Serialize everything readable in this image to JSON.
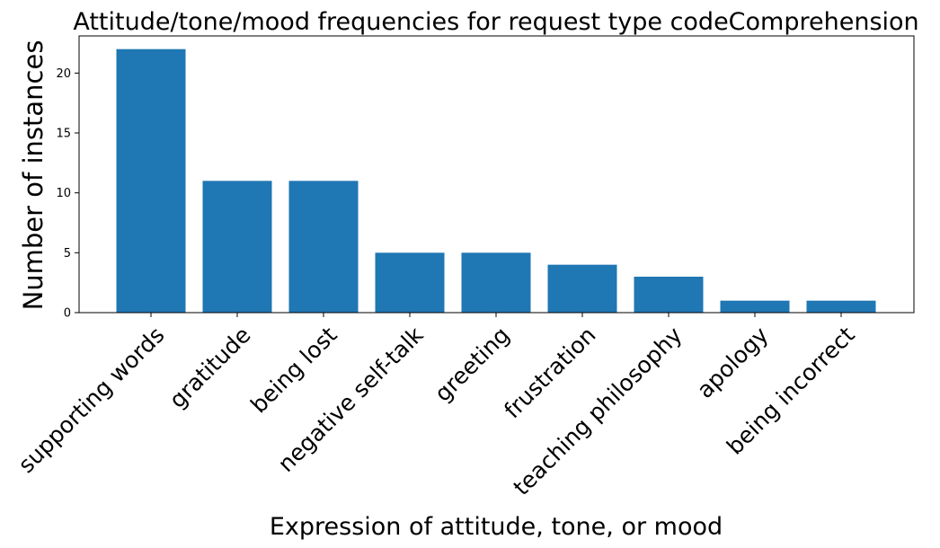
{
  "chart_data": {
    "type": "bar",
    "title": "Attitude/tone/mood frequencies for request type codeComprehension",
    "xlabel": "Expression of attitude, tone, or mood",
    "ylabel": "Number of instances",
    "categories": [
      "supporting words",
      "gratitude",
      "being lost",
      "negative self-talk",
      "greeting",
      "frustration",
      "teaching philosophy",
      "apology",
      "being incorrect"
    ],
    "values": [
      22,
      11,
      11,
      5,
      5,
      4,
      3,
      1,
      1
    ],
    "ylim": [
      0,
      23.1
    ],
    "yticks": [
      "0",
      "5",
      "10",
      "15",
      "20"
    ],
    "bar_color": "#1f77b4",
    "grid": false,
    "legend": "none"
  }
}
